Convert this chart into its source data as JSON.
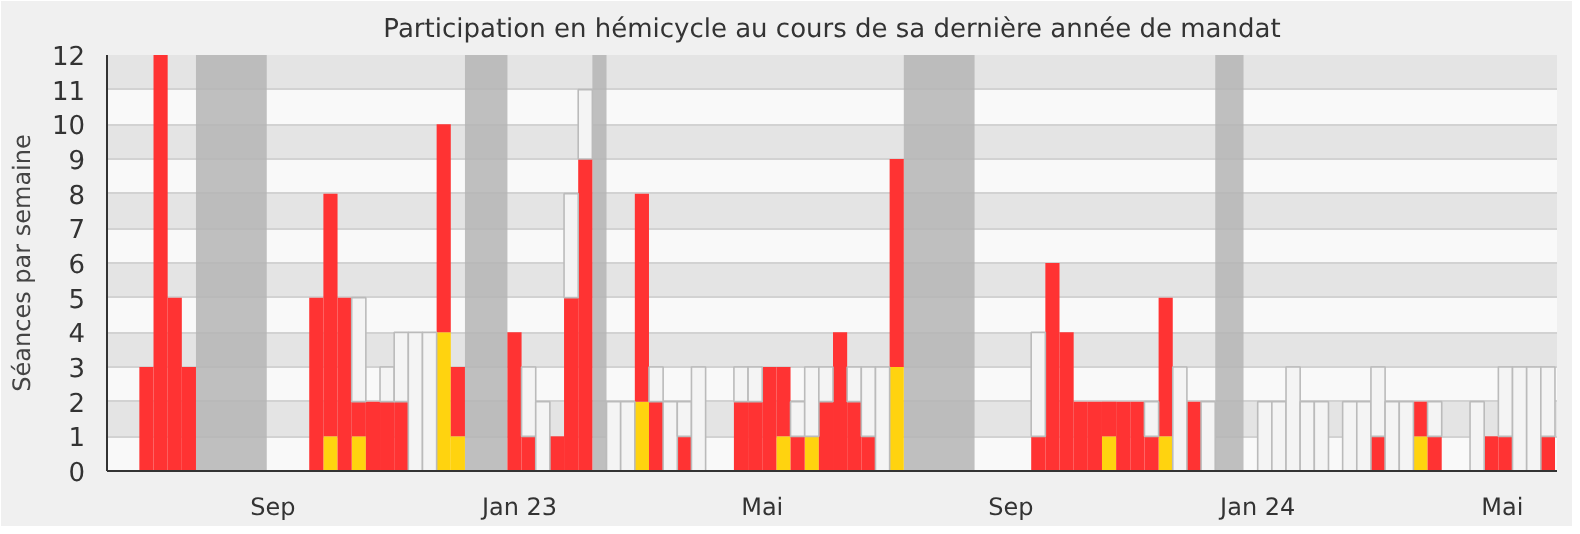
{
  "chart_data": {
    "type": "bar",
    "stacked": true,
    "title": "Participation en hémicycle au cours de sa dernière année de mandat",
    "ylabel": "Séances par semaine",
    "xlim": [
      "2022-06-11",
      "2024-05-28"
    ],
    "ylim": [
      0,
      12
    ],
    "yticks": [
      0,
      1,
      2,
      3,
      4,
      5,
      6,
      7,
      8,
      9,
      10,
      11,
      12
    ],
    "xticks": [
      {
        "value": "2022-09-01",
        "label": "Sep"
      },
      {
        "value": "2023-01-01",
        "label": "Jan 23"
      },
      {
        "value": "2023-05-01",
        "label": "Mai"
      },
      {
        "value": "2023-09-01",
        "label": "Sep"
      },
      {
        "value": "2024-01-01",
        "label": "Jan 24"
      },
      {
        "value": "2024-05-01",
        "label": "Mai"
      }
    ],
    "grid": "y",
    "bands": [
      {
        "axis": "x",
        "from": "2022-07-25",
        "to": "2022-08-29",
        "color": "#b5b5b5"
      },
      {
        "axis": "x",
        "from": "2022-12-05",
        "to": "2022-12-26",
        "color": "#b5b5b5"
      },
      {
        "axis": "x",
        "from": "2023-02-06",
        "to": "2023-02-13",
        "color": "#b5b5b5"
      },
      {
        "axis": "x",
        "from": "2023-07-10",
        "to": "2023-08-14",
        "color": "#b5b5b5"
      },
      {
        "axis": "x",
        "from": "2023-12-11",
        "to": "2023-12-25",
        "color": "#b5b5b5"
      }
    ],
    "x": [
      "2022-06-27",
      "2022-07-04",
      "2022-07-11",
      "2022-07-18",
      "2022-09-19",
      "2022-09-26",
      "2022-10-03",
      "2022-10-10",
      "2022-10-17",
      "2022-10-24",
      "2022-10-31",
      "2022-11-07",
      "2022-11-14",
      "2022-11-21",
      "2022-11-28",
      "2022-12-26",
      "2023-01-02",
      "2023-01-09",
      "2023-01-16",
      "2023-01-23",
      "2023-01-30",
      "2023-02-13",
      "2023-02-20",
      "2023-02-27",
      "2023-03-06",
      "2023-03-13",
      "2023-03-20",
      "2023-03-27",
      "2023-04-17",
      "2023-04-24",
      "2023-05-01",
      "2023-05-08",
      "2023-05-15",
      "2023-05-22",
      "2023-05-29",
      "2023-06-05",
      "2023-06-12",
      "2023-06-19",
      "2023-06-26",
      "2023-07-03",
      "2023-09-11",
      "2023-09-18",
      "2023-09-25",
      "2023-10-02",
      "2023-10-09",
      "2023-10-16",
      "2023-10-23",
      "2023-10-30",
      "2023-11-06",
      "2023-11-13",
      "2023-11-20",
      "2023-11-27",
      "2023-12-04",
      "2024-01-01",
      "2024-01-08",
      "2024-01-15",
      "2024-01-22",
      "2024-01-29",
      "2024-02-12",
      "2024-02-19",
      "2024-02-26",
      "2024-03-04",
      "2024-03-11",
      "2024-03-18",
      "2024-03-25",
      "2024-04-15",
      "2024-04-22",
      "2024-04-29",
      "2024-05-06",
      "2024-05-13",
      "2024-05-20"
    ],
    "series": [
      {
        "color": "#ffd30f",
        "values": [
          null,
          null,
          null,
          null,
          null,
          1,
          null,
          1,
          null,
          null,
          null,
          null,
          null,
          4,
          1,
          null,
          null,
          null,
          null,
          null,
          null,
          null,
          null,
          2,
          null,
          null,
          null,
          null,
          null,
          null,
          null,
          1,
          null,
          1,
          null,
          null,
          null,
          null,
          null,
          3,
          null,
          null,
          null,
          null,
          null,
          1,
          null,
          null,
          null,
          1,
          null,
          null,
          null,
          null,
          null,
          null,
          null,
          null,
          null,
          null,
          null,
          null,
          null,
          1,
          null,
          null,
          null,
          null,
          null,
          null,
          null
        ]
      },
      {
        "color": "#ff3333",
        "values": [
          3,
          12,
          5,
          3,
          5,
          7,
          5,
          1,
          2,
          2,
          2,
          null,
          null,
          6,
          2,
          4,
          1,
          null,
          1,
          5,
          9,
          null,
          null,
          6,
          2,
          null,
          1,
          null,
          2,
          2,
          3,
          2,
          1,
          null,
          2,
          4,
          2,
          1,
          null,
          6,
          1,
          6,
          4,
          2,
          2,
          1,
          2,
          2,
          1,
          4,
          null,
          2,
          null,
          null,
          null,
          null,
          null,
          null,
          null,
          null,
          1,
          null,
          null,
          1,
          1,
          null,
          1,
          1,
          null,
          null,
          1
        ]
      },
      {
        "color": "#f4f4f4",
        "values": [
          null,
          null,
          null,
          null,
          null,
          null,
          null,
          3,
          null,
          1,
          2,
          4,
          4,
          null,
          null,
          null,
          2,
          2,
          null,
          3,
          2,
          2,
          2,
          null,
          1,
          2,
          1,
          3,
          1,
          1,
          null,
          null,
          1,
          2,
          1,
          null,
          1,
          2,
          3,
          null,
          3,
          null,
          null,
          null,
          null,
          null,
          null,
          null,
          1,
          null,
          3,
          null,
          2,
          2,
          2,
          3,
          2,
          2,
          2,
          2,
          2,
          2,
          2,
          null,
          1,
          2,
          null,
          2,
          3,
          3,
          2
        ]
      }
    ]
  }
}
